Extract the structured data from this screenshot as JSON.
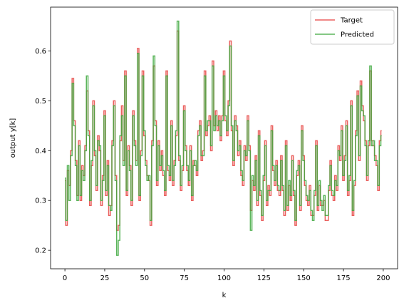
{
  "chart_data": {
    "type": "line",
    "step": true,
    "xlabel": "k",
    "ylabel": "output y[k]",
    "xlim": [
      -9,
      209
    ],
    "ylim": [
      0.163,
      0.688
    ],
    "xticks": [
      0,
      25,
      50,
      75,
      100,
      125,
      150,
      175,
      200
    ],
    "yticks": [
      0.2,
      0.3,
      0.4,
      0.5,
      0.6
    ],
    "ytick_labels": [
      "0.2",
      "0.3",
      "0.4",
      "0.5",
      "0.6"
    ],
    "grid": false,
    "legend_position": "top-right",
    "series": [
      {
        "name": "Target",
        "color": "#e8504e",
        "opacity": 0.9
      },
      {
        "name": "Predicted",
        "color": "#3ea83e",
        "opacity": 0.85
      }
    ],
    "x": [
      0,
      1,
      2,
      3,
      4,
      5,
      6,
      7,
      8,
      9,
      10,
      11,
      12,
      13,
      14,
      15,
      16,
      17,
      18,
      19,
      20,
      21,
      22,
      23,
      24,
      25,
      26,
      27,
      28,
      29,
      30,
      31,
      32,
      33,
      34,
      35,
      36,
      37,
      38,
      39,
      40,
      41,
      42,
      43,
      44,
      45,
      46,
      47,
      48,
      49,
      50,
      51,
      52,
      53,
      54,
      55,
      56,
      57,
      58,
      59,
      60,
      61,
      62,
      63,
      64,
      65,
      66,
      67,
      68,
      69,
      70,
      71,
      72,
      73,
      74,
      75,
      76,
      77,
      78,
      79,
      80,
      81,
      82,
      83,
      84,
      85,
      86,
      87,
      88,
      89,
      90,
      91,
      92,
      93,
      94,
      95,
      96,
      97,
      98,
      99,
      100,
      101,
      102,
      103,
      104,
      105,
      106,
      107,
      108,
      109,
      110,
      111,
      112,
      113,
      114,
      115,
      116,
      117,
      118,
      119,
      120,
      121,
      122,
      123,
      124,
      125,
      126,
      127,
      128,
      129,
      130,
      131,
      132,
      133,
      134,
      135,
      136,
      137,
      138,
      139,
      140,
      141,
      142,
      143,
      144,
      145,
      146,
      147,
      148,
      149,
      150,
      151,
      152,
      153,
      154,
      155,
      156,
      157,
      158,
      159,
      160,
      161,
      162,
      163,
      164,
      165,
      166,
      167,
      168,
      169,
      170,
      171,
      172,
      173,
      174,
      175,
      176,
      177,
      178,
      179,
      180,
      181,
      182,
      183,
      184,
      185,
      186,
      187,
      188,
      189,
      190,
      191,
      192,
      193,
      194,
      195,
      196,
      197,
      198,
      199
    ],
    "target": [
      0.34,
      0.25,
      0.36,
      0.33,
      0.4,
      0.545,
      0.46,
      0.38,
      0.31,
      0.42,
      0.3,
      0.37,
      0.35,
      0.41,
      0.52,
      0.44,
      0.29,
      0.37,
      0.5,
      0.39,
      0.32,
      0.43,
      0.4,
      0.29,
      0.35,
      0.48,
      0.31,
      0.38,
      0.27,
      0.29,
      0.42,
      0.5,
      0.35,
      0.24,
      0.25,
      0.42,
      0.49,
      0.38,
      0.56,
      0.31,
      0.41,
      0.37,
      0.29,
      0.48,
      0.42,
      0.38,
      0.605,
      0.3,
      0.4,
      0.56,
      0.43,
      0.38,
      0.35,
      0.34,
      0.25,
      0.42,
      0.57,
      0.46,
      0.33,
      0.42,
      0.36,
      0.4,
      0.35,
      0.31,
      0.56,
      0.36,
      0.34,
      0.46,
      0.33,
      0.38,
      0.43,
      0.64,
      0.38,
      0.32,
      0.36,
      0.49,
      0.41,
      0.36,
      0.33,
      0.41,
      0.3,
      0.38,
      0.37,
      0.35,
      0.44,
      0.46,
      0.38,
      0.4,
      0.56,
      0.43,
      0.45,
      0.47,
      0.4,
      0.58,
      0.45,
      0.48,
      0.44,
      0.47,
      0.42,
      0.47,
      0.56,
      0.46,
      0.43,
      0.5,
      0.62,
      0.44,
      0.37,
      0.47,
      0.45,
      0.39,
      0.42,
      0.35,
      0.33,
      0.41,
      0.38,
      0.47,
      0.41,
      0.28,
      0.34,
      0.32,
      0.39,
      0.29,
      0.44,
      0.31,
      0.26,
      0.34,
      0.42,
      0.29,
      0.33,
      0.31,
      0.45,
      0.36,
      0.33,
      0.38,
      0.32,
      0.31,
      0.39,
      0.32,
      0.27,
      0.42,
      0.28,
      0.33,
      0.3,
      0.39,
      0.31,
      0.25,
      0.35,
      0.38,
      0.28,
      0.45,
      0.39,
      0.33,
      0.3,
      0.29,
      0.33,
      0.27,
      0.27,
      0.31,
      0.42,
      0.28,
      0.33,
      0.29,
      0.29,
      0.3,
      0.26,
      0.26,
      0.32,
      0.38,
      0.31,
      0.3,
      0.35,
      0.32,
      0.41,
      0.38,
      0.45,
      0.34,
      0.39,
      0.46,
      0.31,
      0.34,
      0.5,
      0.27,
      0.33,
      0.44,
      0.52,
      0.38,
      0.54,
      0.49,
      0.46,
      0.42,
      0.34,
      0.41,
      0.56,
      0.42,
      0.41,
      0.39,
      0.37,
      0.32,
      0.42,
      0.44,
      0.4,
      0.38
    ],
    "predicted": [
      0.345,
      0.26,
      0.37,
      0.3,
      0.39,
      0.535,
      0.45,
      0.37,
      0.3,
      0.41,
      0.31,
      0.36,
      0.34,
      0.4,
      0.55,
      0.43,
      0.3,
      0.38,
      0.49,
      0.4,
      0.33,
      0.42,
      0.41,
      0.3,
      0.34,
      0.47,
      0.32,
      0.37,
      0.29,
      0.28,
      0.41,
      0.49,
      0.34,
      0.19,
      0.22,
      0.43,
      0.47,
      0.37,
      0.55,
      0.32,
      0.4,
      0.36,
      0.3,
      0.47,
      0.41,
      0.37,
      0.595,
      0.31,
      0.39,
      0.55,
      0.44,
      0.37,
      0.34,
      0.35,
      0.26,
      0.41,
      0.59,
      0.45,
      0.34,
      0.41,
      0.37,
      0.39,
      0.36,
      0.32,
      0.55,
      0.37,
      0.35,
      0.45,
      0.34,
      0.37,
      0.44,
      0.66,
      0.39,
      0.33,
      0.37,
      0.48,
      0.4,
      0.37,
      0.34,
      0.4,
      0.31,
      0.37,
      0.38,
      0.36,
      0.43,
      0.45,
      0.39,
      0.39,
      0.55,
      0.44,
      0.46,
      0.46,
      0.41,
      0.57,
      0.44,
      0.47,
      0.45,
      0.46,
      0.43,
      0.46,
      0.55,
      0.47,
      0.44,
      0.49,
      0.61,
      0.45,
      0.38,
      0.46,
      0.44,
      0.4,
      0.41,
      0.36,
      0.34,
      0.4,
      0.39,
      0.46,
      0.4,
      0.24,
      0.35,
      0.33,
      0.38,
      0.3,
      0.43,
      0.32,
      0.27,
      0.35,
      0.41,
      0.3,
      0.32,
      0.32,
      0.44,
      0.37,
      0.34,
      0.37,
      0.33,
      0.32,
      0.38,
      0.33,
      0.28,
      0.41,
      0.29,
      0.34,
      0.31,
      0.38,
      0.32,
      0.26,
      0.36,
      0.37,
      0.29,
      0.44,
      0.38,
      0.34,
      0.31,
      0.3,
      0.32,
      0.28,
      0.26,
      0.32,
      0.41,
      0.29,
      0.34,
      0.3,
      0.28,
      0.31,
      0.27,
      0.27,
      0.33,
      0.37,
      0.32,
      0.31,
      0.34,
      0.33,
      0.4,
      0.39,
      0.44,
      0.35,
      0.38,
      0.45,
      0.32,
      0.35,
      0.49,
      0.28,
      0.34,
      0.43,
      0.51,
      0.39,
      0.53,
      0.48,
      0.47,
      0.41,
      0.35,
      0.42,
      0.57,
      0.41,
      0.42,
      0.38,
      0.38,
      0.33,
      0.41,
      0.43,
      0.41,
      0.39
    ]
  }
}
